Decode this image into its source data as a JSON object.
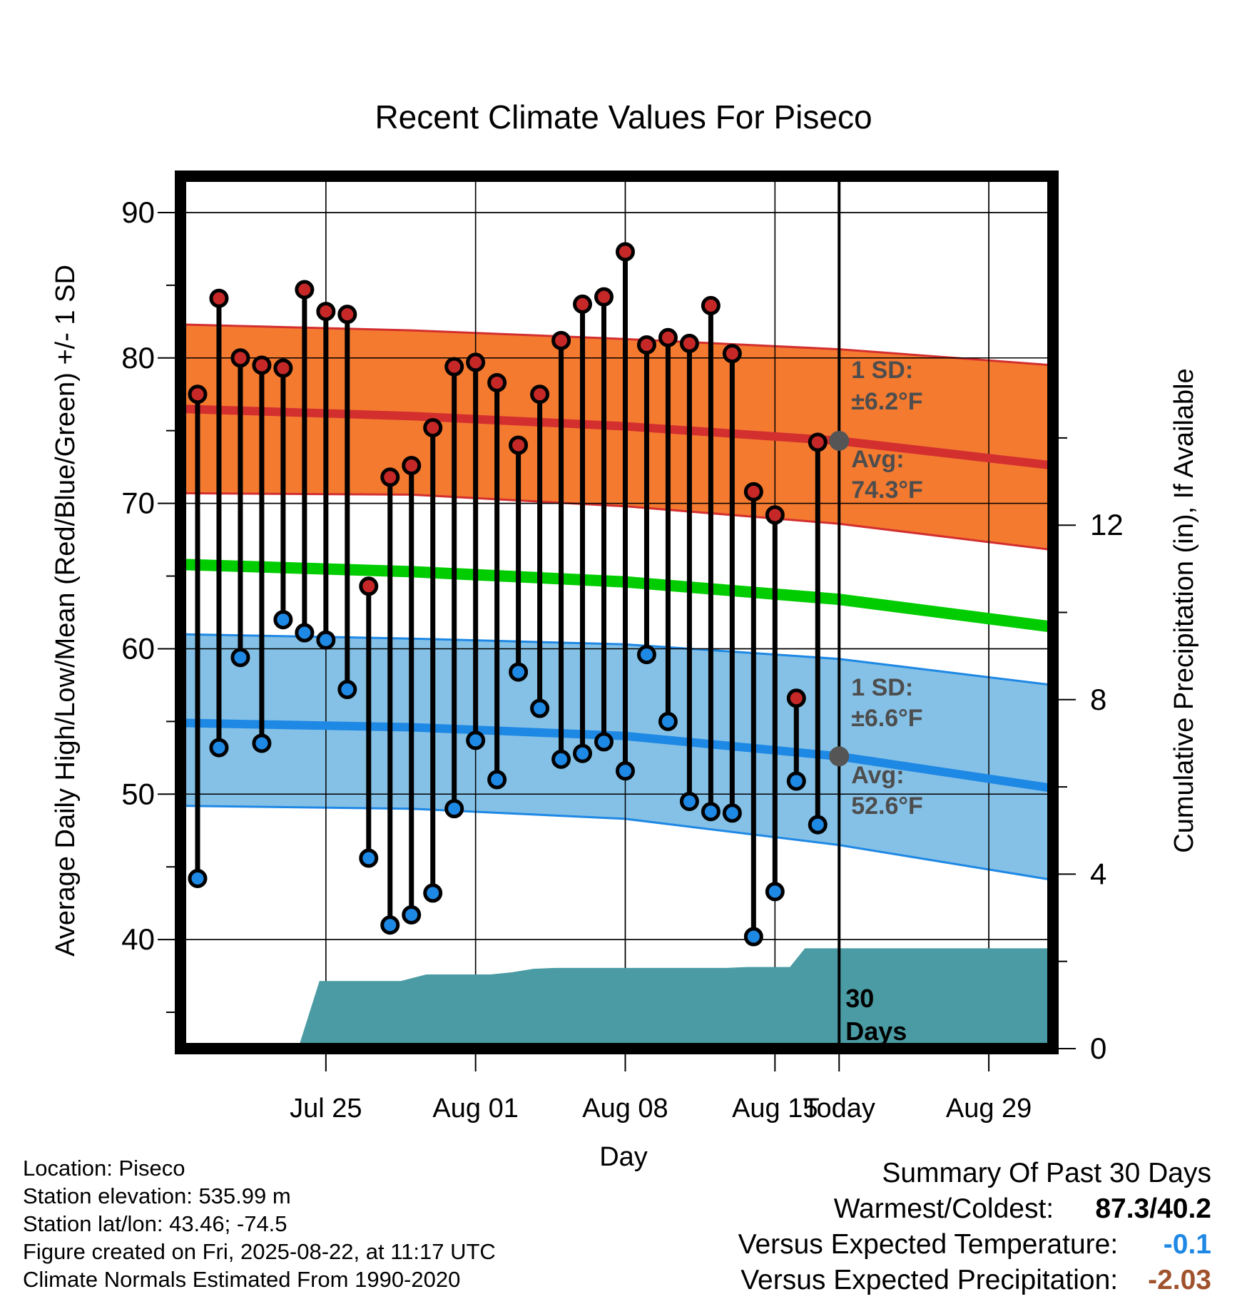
{
  "chart_data": {
    "type": "line",
    "title": "Recent Climate Values For Piseco",
    "xlabel": "Day",
    "ylabel": "Average Daily High/Low/Mean (Red/Blue/Green) +/- 1 SD",
    "y2label": "Cumulative Precipitation (in), If Available",
    "x_ticks": [
      "Jul 25",
      "Aug 01",
      "Aug 08",
      "Aug 15",
      "Today",
      "Aug 29"
    ],
    "ylim": [
      32.5,
      92.5
    ],
    "y_ticks": [
      40,
      50,
      60,
      70,
      80,
      90
    ],
    "y2lim": [
      0,
      20
    ],
    "y2_ticks": [
      0,
      4,
      8,
      12
    ],
    "grid": true,
    "x_range_days": [
      -30.8,
      10
    ],
    "x_tick_days": [
      -24,
      -17,
      -10,
      -3,
      0,
      7
    ],
    "days": [
      -30,
      -29,
      -28,
      -27,
      -26,
      -25,
      -24,
      -23,
      -22,
      -21,
      -20,
      -19,
      -18,
      -17,
      -16,
      -15,
      -14,
      -13,
      -12,
      -11,
      -10,
      -9,
      -8,
      -7,
      -6,
      -5,
      -4,
      -3,
      -2,
      -1
    ],
    "series": [
      {
        "name": "High",
        "color": "#c62828",
        "values": [
          77.5,
          84.1,
          80.0,
          79.5,
          79.3,
          84.7,
          83.2,
          83.0,
          64.3,
          71.8,
          72.6,
          75.2,
          79.4,
          79.7,
          78.3,
          74.0,
          77.5,
          81.2,
          83.7,
          84.2,
          87.3,
          80.9,
          81.4,
          81.0,
          83.6,
          80.3,
          70.8,
          69.2,
          56.6,
          74.2
        ]
      },
      {
        "name": "Low",
        "color": "#1e88e5",
        "values": [
          44.2,
          53.2,
          59.4,
          53.5,
          62.0,
          61.1,
          60.6,
          57.2,
          45.6,
          41.0,
          41.7,
          43.2,
          49.0,
          53.7,
          51.0,
          58.4,
          55.9,
          52.4,
          52.8,
          53.6,
          51.6,
          59.6,
          55.0,
          49.5,
          48.8,
          48.7,
          40.2,
          43.3,
          50.9,
          47.9
        ]
      }
    ],
    "normals": {
      "high_avg": {
        "color": "#d32f2f",
        "x": [
          -30.8,
          -20,
          -10,
          0,
          10
        ],
        "y": [
          76.5,
          76.0,
          75.3,
          74.3,
          72.6
        ]
      },
      "high_band_upper": {
        "x": [
          -30.8,
          -20,
          -10,
          0,
          10
        ],
        "y": [
          82.3,
          81.9,
          81.3,
          80.6,
          79.5
        ]
      },
      "high_band_lower": {
        "x": [
          -30.8,
          -20,
          -10,
          0,
          10
        ],
        "y": [
          70.7,
          70.6,
          69.8,
          68.6,
          66.8
        ]
      },
      "mean_avg": {
        "color": "#00cc00",
        "x": [
          -30.8,
          -20,
          -10,
          0,
          10
        ],
        "y": [
          65.8,
          65.3,
          64.6,
          63.4,
          61.5
        ]
      },
      "low_avg": {
        "color": "#1e88e5",
        "x": [
          -30.8,
          -20,
          -10,
          0,
          10
        ],
        "y": [
          54.9,
          54.6,
          54.0,
          52.6,
          50.4
        ]
      },
      "low_band_upper": {
        "x": [
          -30.8,
          -20,
          -10,
          0,
          10
        ],
        "y": [
          61.0,
          60.7,
          60.3,
          59.3,
          57.5
        ]
      },
      "low_band_lower": {
        "x": [
          -30.8,
          -20,
          -10,
          0,
          10
        ],
        "y": [
          49.2,
          49.0,
          48.3,
          46.5,
          44.1
        ]
      }
    },
    "precip_cumulative": {
      "color": "#4a9ba3",
      "x": [
        -26.1,
        -25.3,
        -24.3,
        -23.3,
        -22.3,
        -21.3,
        -20.5,
        -19.3,
        -18.3,
        -17.3,
        -16.3,
        -15.3,
        -14.3,
        -13.3,
        -12.3,
        -11.3,
        -10.3,
        -9.3,
        -8.3,
        -7.3,
        -6.3,
        -5.3,
        -4.3,
        -3.3,
        -2.3,
        -1.6,
        -0.3,
        0,
        10
      ],
      "y": [
        0.0,
        0.0,
        1.55,
        1.55,
        1.55,
        1.55,
        1.55,
        1.7,
        1.7,
        1.7,
        1.7,
        1.75,
        1.83,
        1.85,
        1.85,
        1.85,
        1.85,
        1.85,
        1.85,
        1.85,
        1.85,
        1.85,
        1.87,
        1.87,
        1.87,
        2.3,
        2.3,
        2.3,
        2.3
      ]
    },
    "annotations": {
      "high_sd_label": "1 SD:",
      "high_sd_value": "±6.2°F",
      "high_avg_label": "Avg:",
      "high_avg_value": "74.3°F",
      "low_sd_label": "1 SD:",
      "low_sd_value": "±6.6°F",
      "low_avg_label": "Avg:",
      "low_avg_value": "52.6°F",
      "today_marker_high": 74.3,
      "today_marker_low": 52.6,
      "precip_days_line1": "30",
      "precip_days_line2": "Days"
    }
  },
  "info": {
    "location": "Location: Piseco",
    "elevation": "Station elevation: 535.99 m",
    "latlon": "Station lat/lon: 43.46; -74.5",
    "created": "Figure created on Fri, 2025-08-22, at 11:17 UTC",
    "normals": "Climate Normals Estimated From 1990-2020"
  },
  "summary": {
    "title": "Summary Of Past 30 Days",
    "warm_cold_label": "Warmest/Coldest:",
    "warm_cold_value": "87.3/40.2",
    "temp_label": "Versus Expected Temperature:",
    "temp_value": "-0.1",
    "temp_color": "#1e88e5",
    "precip_label": "Versus Expected Precipitation:",
    "precip_value": "-2.03",
    "precip_color": "#a0522d"
  }
}
